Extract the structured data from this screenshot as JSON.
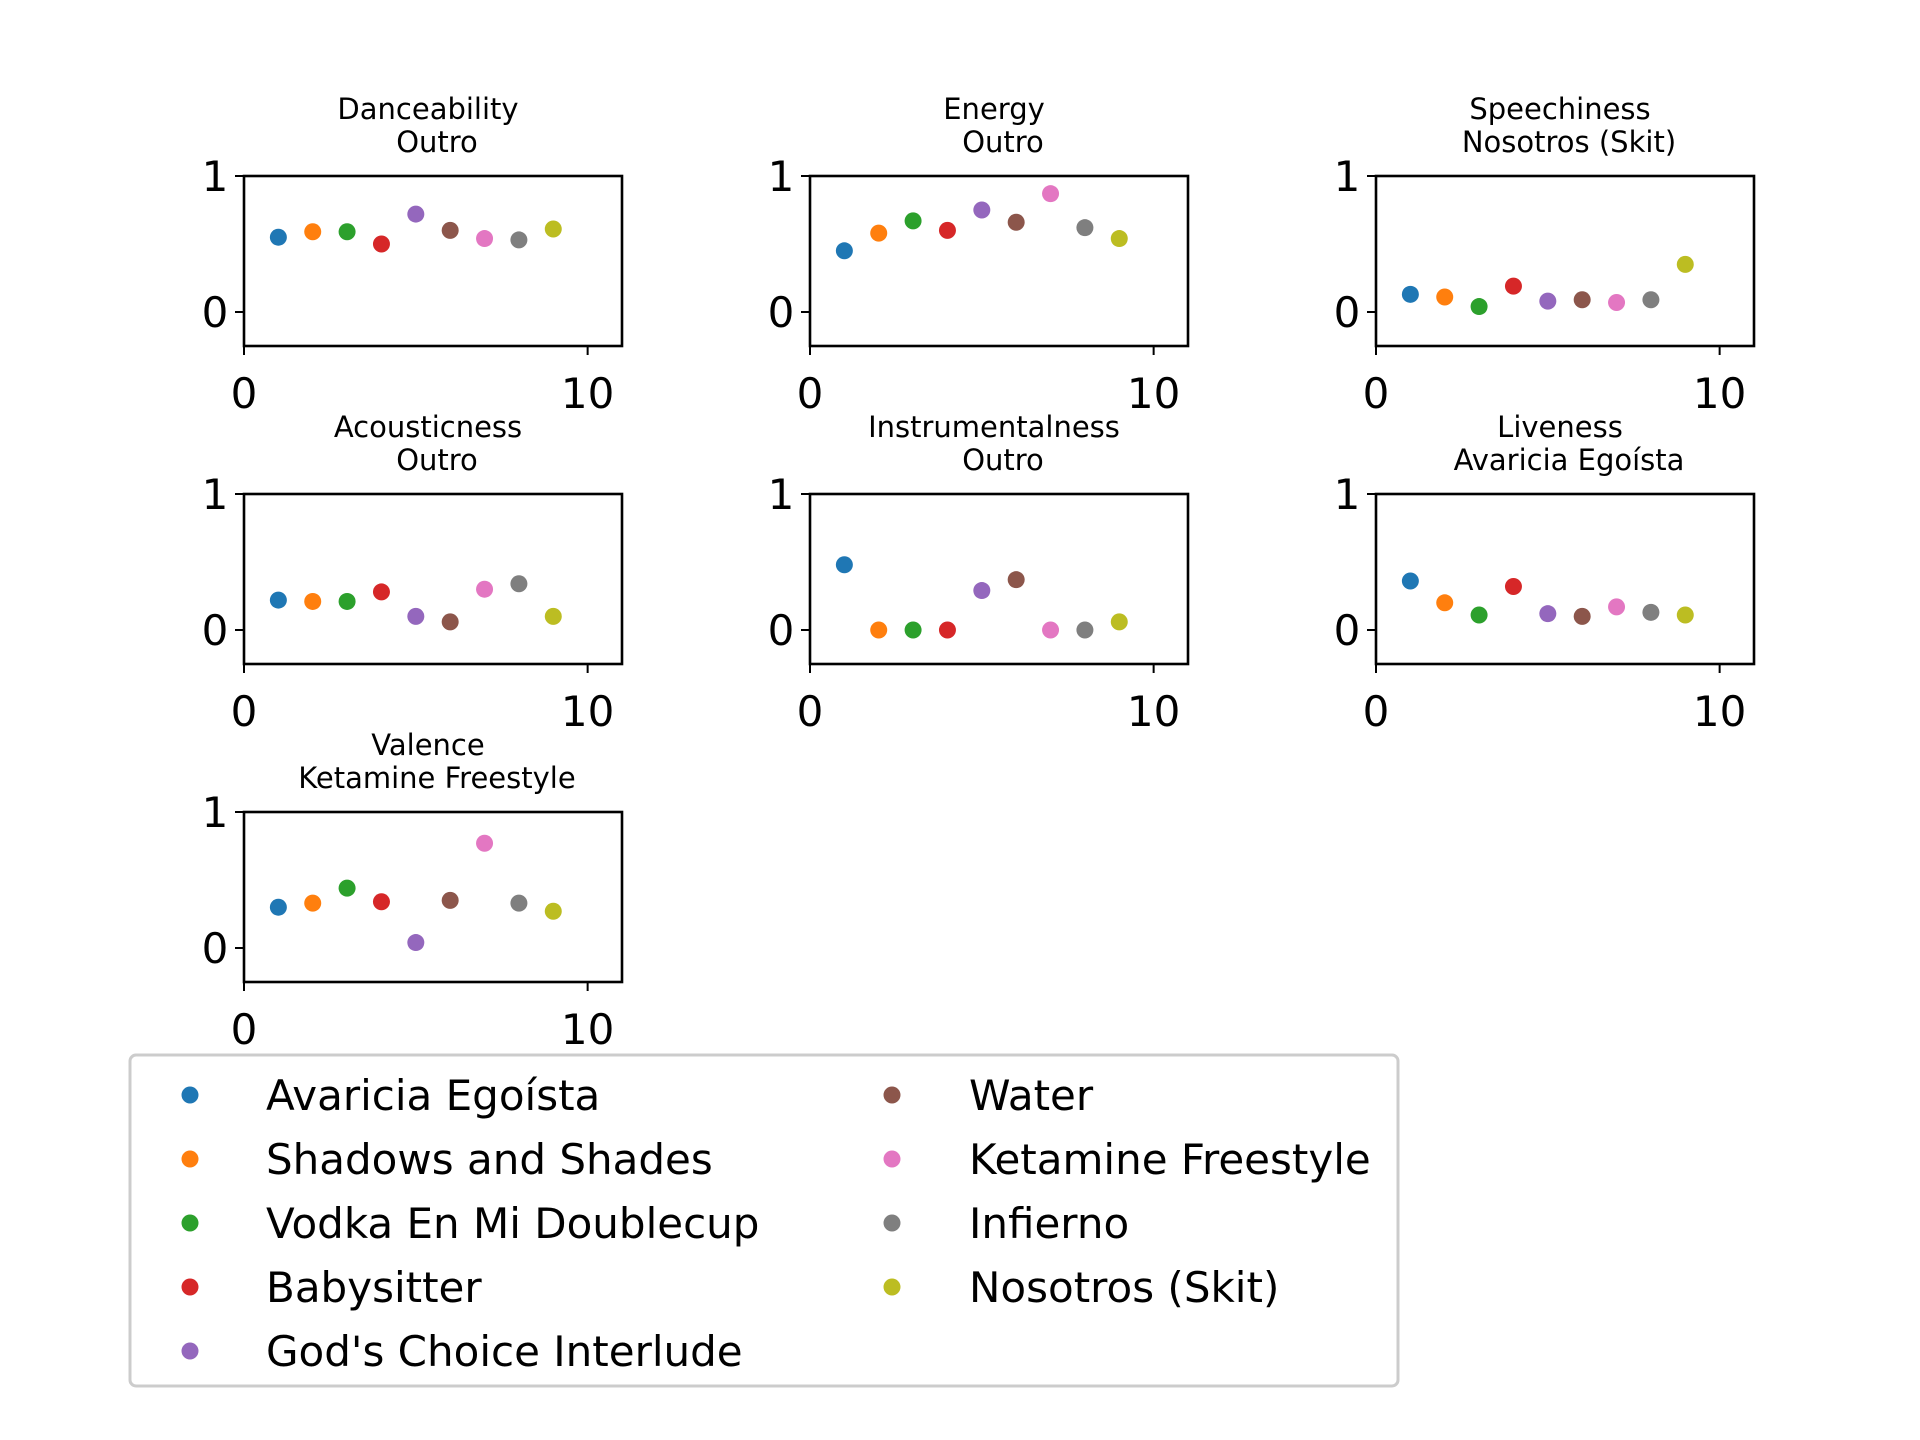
{
  "chart_data": {
    "type": "scatter",
    "layout": {
      "rows": 3,
      "cols": 3
    },
    "x": [
      1,
      2,
      3,
      4,
      5,
      6,
      7,
      8,
      9
    ],
    "xlim": [
      0,
      11
    ],
    "ylim": [
      -0.25,
      1
    ],
    "xticks": [
      "0",
      "10"
    ],
    "yticks": [
      "0",
      "1"
    ],
    "series": [
      {
        "name": "Avaricia Egoísta",
        "color": "#1f77b4"
      },
      {
        "name": "Shadows and Shades",
        "color": "#ff7f0e"
      },
      {
        "name": "Vodka En Mi Doublecup",
        "color": "#2ca02c"
      },
      {
        "name": "Babysitter",
        "color": "#d62728"
      },
      {
        "name": "God's Choice Interlude",
        "color": "#9467bd"
      },
      {
        "name": "Water",
        "color": "#8c564b"
      },
      {
        "name": "Ketamine Freestyle",
        "color": "#e377c2"
      },
      {
        "name": "Infierno",
        "color": "#7f7f7f"
      },
      {
        "name": "Nosotros (Skit)",
        "color": "#bcbd22"
      }
    ],
    "panels": [
      {
        "title": "Danceability",
        "subtitle": "Outro",
        "values": [
          0.55,
          0.59,
          0.59,
          0.5,
          0.72,
          0.6,
          0.54,
          0.53,
          0.61
        ]
      },
      {
        "title": "Energy",
        "subtitle": "Outro",
        "values": [
          0.45,
          0.58,
          0.67,
          0.6,
          0.75,
          0.66,
          0.87,
          0.62,
          0.54
        ]
      },
      {
        "title": "Speechiness",
        "subtitle": "Nosotros (Skit)",
        "values": [
          0.13,
          0.11,
          0.04,
          0.19,
          0.08,
          0.09,
          0.07,
          0.09,
          0.35
        ]
      },
      {
        "title": "Acousticness",
        "subtitle": "Outro",
        "values": [
          0.22,
          0.21,
          0.21,
          0.28,
          0.1,
          0.06,
          0.3,
          0.34,
          0.1
        ]
      },
      {
        "title": "Instrumentalness",
        "subtitle": "Outro",
        "values": [
          0.48,
          0.0,
          0.0,
          0.0,
          0.29,
          0.37,
          0.0,
          0.0,
          0.06
        ]
      },
      {
        "title": "Liveness",
        "subtitle": "Avaricia Egoísta",
        "values": [
          0.36,
          0.2,
          0.11,
          0.32,
          0.12,
          0.1,
          0.17,
          0.13,
          0.11
        ]
      },
      {
        "title": "Valence",
        "subtitle": "Ketamine Freestyle",
        "values": [
          0.3,
          0.33,
          0.44,
          0.34,
          0.04,
          0.35,
          0.77,
          0.33,
          0.27
        ]
      }
    ],
    "legend": {
      "placement": "bottom-left",
      "columns": 2
    }
  }
}
